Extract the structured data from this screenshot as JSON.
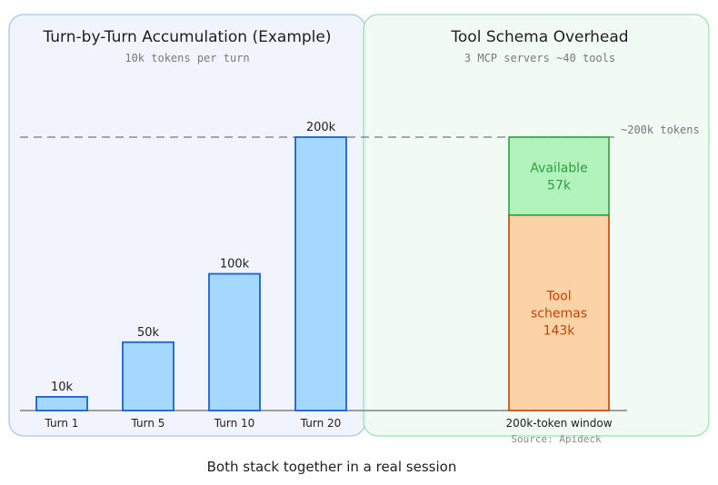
{
  "left_panel": {
    "title": "Turn-by-Turn Accumulation (Example)",
    "subtitle": "10k tokens per turn"
  },
  "right_panel": {
    "title": "Tool Schema Overhead",
    "subtitle": "3 MCP servers ~40 tools"
  },
  "limit_label": "~200k tokens",
  "chart_data": [
    {
      "type": "bar",
      "categories": [
        "Turn 1",
        "Turn 5",
        "Turn 10",
        "Turn 20"
      ],
      "values": [
        10,
        50,
        100,
        200
      ],
      "data_labels": [
        "10k",
        "50k",
        "100k",
        "200k"
      ],
      "ylim": [
        0,
        200
      ],
      "grid": false
    },
    {
      "type": "stacked-bar",
      "categories": [
        "200k-token window"
      ],
      "series": [
        {
          "label_lines": [
            "Tool",
            "schemas",
            "143k"
          ],
          "values": [
            143
          ],
          "color": "#fcd3a6"
        },
        {
          "label_lines": [
            "Available",
            "57k"
          ],
          "values": [
            57
          ],
          "color": "#b2f2bb"
        }
      ],
      "ylim": [
        0,
        200
      ]
    }
  ],
  "source": "Source: Apideck",
  "caption": "Both stack together in a real session",
  "colors": {
    "left_panel_bg": "#f1f4fd",
    "left_panel_border": "#a5c8ef",
    "right_panel_bg": "#eefaf1",
    "right_panel_border": "#9fe0b5",
    "bar_fill": "#a5d8ff",
    "bar_stroke": "#1c5fd4",
    "tool_text": "#c4420a",
    "available_text": "#2f9e44"
  }
}
